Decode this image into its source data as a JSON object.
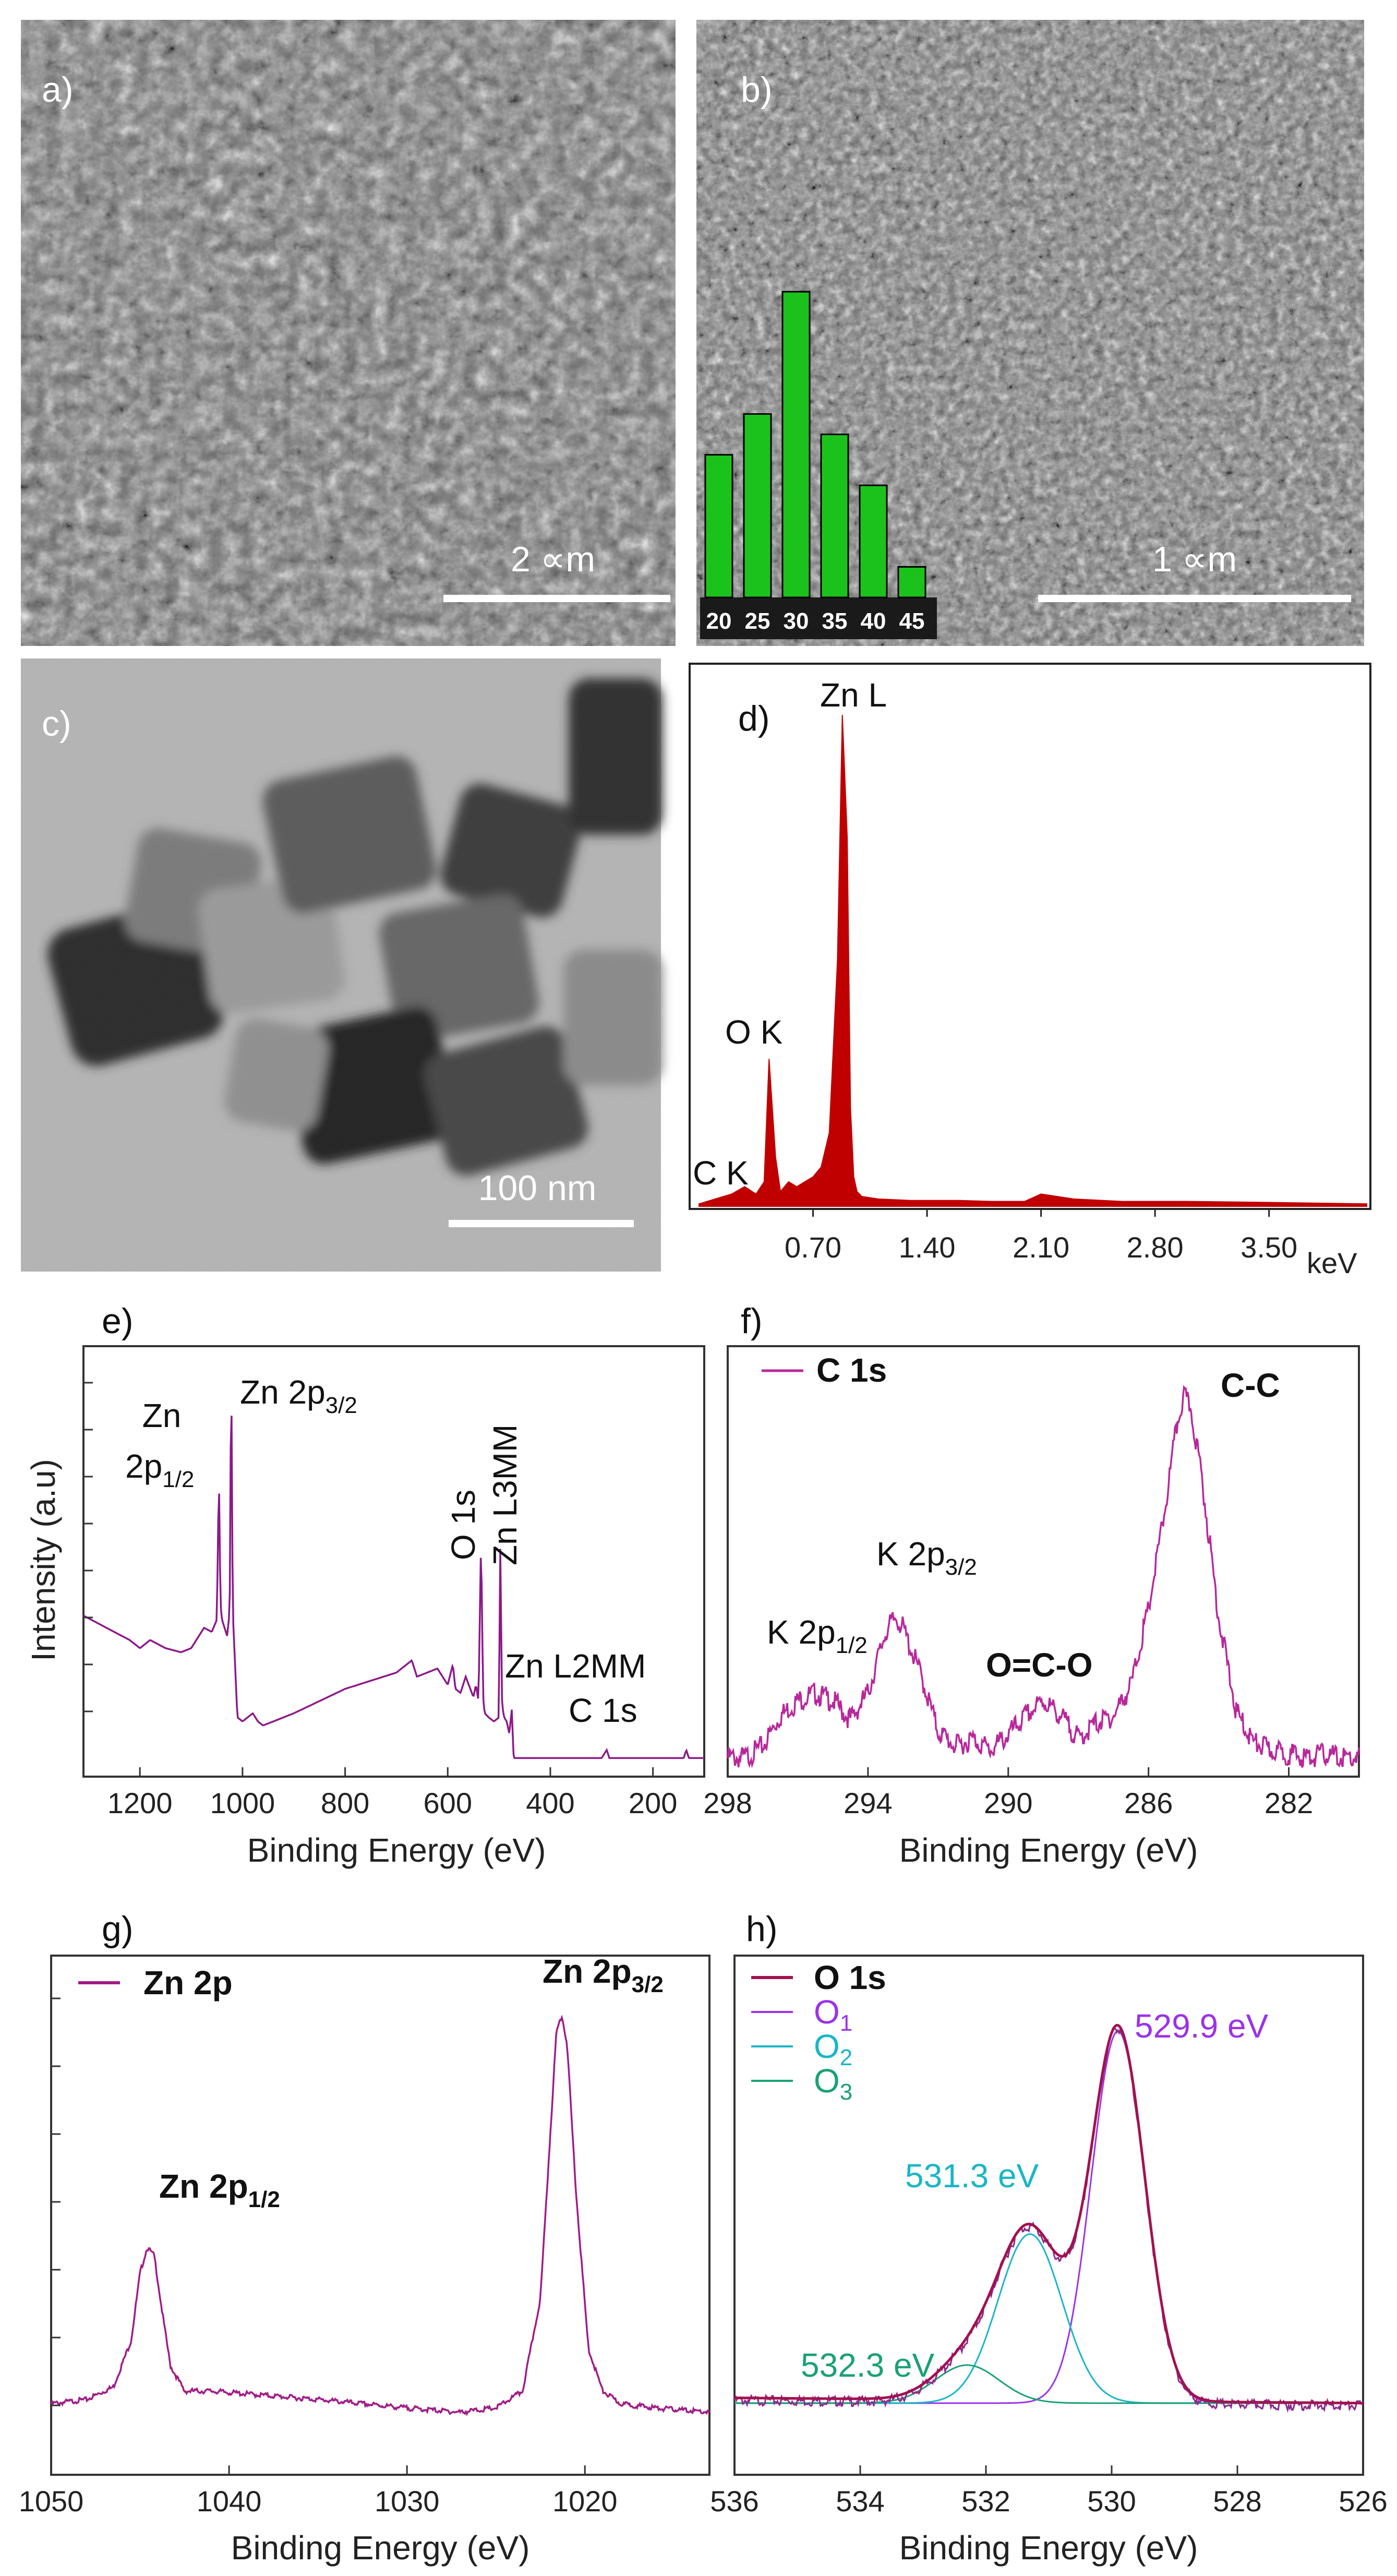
{
  "panels": {
    "a": {
      "label": "a)",
      "scale_bar": "2 ∝m"
    },
    "b": {
      "label": "b)",
      "scale_bar": "1 ∝m"
    },
    "c": {
      "label": "c)",
      "scale_bar": "100 nm"
    },
    "d": {
      "label": "d)"
    },
    "e": {
      "label": "e)"
    },
    "f": {
      "label": "f)"
    },
    "g": {
      "label": "g)"
    },
    "h": {
      "label": "h)"
    }
  },
  "chart_data": [
    {
      "panel": "b",
      "type": "bar",
      "categories": [
        "20",
        "25",
        "30",
        "35",
        "40",
        "45"
      ],
      "values": [
        7,
        9,
        15,
        8,
        5.5,
        1.5
      ],
      "ylim": [
        0,
        16
      ],
      "color": "#1cc21c"
    },
    {
      "panel": "d",
      "type": "area",
      "xlabel": "keV",
      "xticks": [
        "0.70",
        "1.40",
        "2.10",
        "2.80",
        "3.50"
      ],
      "xlim": [
        0,
        4.1
      ],
      "ylim": [
        0,
        100
      ],
      "color": "#c00000",
      "x": [
        0,
        0.1,
        0.2,
        0.28,
        0.35,
        0.4,
        0.43,
        0.47,
        0.5,
        0.55,
        0.6,
        0.7,
        0.75,
        0.8,
        0.85,
        0.88,
        0.91,
        0.93,
        0.95,
        0.97,
        1.0,
        1.1,
        1.3,
        1.6,
        1.8,
        2.0,
        2.1,
        2.3,
        2.6,
        3.0,
        3.5,
        4.1
      ],
      "y": [
        0.5,
        1.5,
        2.5,
        4,
        2.5,
        5,
        30,
        10,
        3,
        5,
        4,
        6,
        8,
        15,
        50,
        100,
        75,
        20,
        6,
        3,
        2,
        1.5,
        1.2,
        1.2,
        1,
        1,
        2.5,
        1.5,
        1,
        1,
        0.8,
        0.5
      ],
      "annotations": [
        "Zn L",
        "O K",
        "C K"
      ]
    },
    {
      "panel": "e",
      "type": "line",
      "xlabel": "Binding Energy (eV)",
      "ylabel": "Intensity (a.u)",
      "xticks": [
        "1200",
        "1000",
        "800",
        "600",
        "400",
        "200"
      ],
      "xlim": [
        1310,
        100
      ],
      "ylim": [
        0,
        100
      ],
      "color": "#8b1a89",
      "x": [
        1310,
        1280,
        1250,
        1220,
        1200,
        1180,
        1150,
        1120,
        1100,
        1090,
        1075,
        1060,
        1050,
        1046,
        1043,
        1040,
        1030,
        1025,
        1022,
        1019,
        1010,
        1000,
        980,
        970,
        960,
        900,
        850,
        800,
        750,
        700,
        670,
        660,
        640,
        620,
        600,
        590,
        585,
        575,
        565,
        550,
        545,
        540,
        535,
        531,
        528,
        520,
        510,
        500,
        498,
        494,
        490,
        485,
        480,
        475,
        472,
        470,
        460,
        400,
        300,
        290,
        285,
        280,
        200,
        140,
        135,
        130,
        100
      ],
      "y": [
        37,
        35,
        33,
        31,
        29,
        31,
        29,
        28,
        29,
        31,
        34,
        33,
        36,
        72,
        40,
        36,
        32,
        38,
        100,
        38,
        12,
        11,
        13,
        11,
        10,
        13,
        16,
        19,
        21,
        23,
        26,
        22,
        23,
        24,
        20,
        25,
        19,
        18,
        22,
        17,
        20,
        16,
        56,
        17,
        13,
        12,
        11,
        12,
        58,
        15,
        12,
        11,
        8,
        14,
        3,
        2,
        2,
        2,
        2,
        4,
        2,
        2,
        2,
        2,
        4,
        2,
        2
      ],
      "annotations": [
        "Zn 2p1/2",
        "Zn 2p3/2",
        "O 1s",
        "Zn L3MM",
        "Zn L2MM",
        "C 1s"
      ]
    },
    {
      "panel": "f",
      "type": "line",
      "xlabel": "Binding Energy (eV)",
      "xticks": [
        "298",
        "294",
        "290",
        "286",
        "282"
      ],
      "xlim": [
        298,
        280
      ],
      "ylim": [
        0,
        100
      ],
      "color": "#b8289a",
      "series": [
        {
          "name": "C 1s"
        }
      ],
      "x": [
        297.5,
        297,
        296.5,
        296,
        295.5,
        295,
        294.5,
        294,
        293.5,
        293.2,
        293,
        292.5,
        292,
        291.5,
        291,
        290.5,
        290,
        289.5,
        289,
        288.5,
        288,
        287.5,
        287,
        286.5,
        286,
        285.5,
        285.2,
        285,
        284.8,
        284.5,
        284,
        283.5,
        283,
        282.5,
        282,
        281.5,
        281,
        280.5,
        280
      ],
      "y": [
        3,
        6,
        14,
        18,
        20,
        18,
        13,
        20,
        36,
        40,
        37,
        25,
        10,
        6,
        8,
        5,
        9,
        14,
        18,
        14,
        8,
        12,
        14,
        22,
        42,
        70,
        90,
        98,
        95,
        78,
        40,
        15,
        7,
        5,
        4,
        3,
        4,
        3,
        3
      ],
      "annotations": [
        "C-C",
        "K 2p3/2",
        "K 2p1/2",
        "O=C-O"
      ]
    },
    {
      "panel": "g",
      "type": "line",
      "xlabel": "Binding Energy (eV)",
      "xticks": [
        "1050",
        "1040",
        "1030",
        "1020"
      ],
      "xlim": [
        1050,
        1013
      ],
      "ylim": [
        0,
        100
      ],
      "color": "#a11c85",
      "series": [
        {
          "name": "Zn 2p"
        }
      ],
      "x": [
        1050,
        1048,
        1046.5,
        1045.5,
        1045,
        1044.6,
        1044.2,
        1043.8,
        1043.3,
        1042.5,
        1041,
        1038,
        1035,
        1030,
        1027,
        1025,
        1023.5,
        1022.5,
        1022,
        1021.6,
        1021.3,
        1021,
        1020.5,
        1019.8,
        1019,
        1018,
        1016,
        1013
      ],
      "y": [
        5,
        6,
        9,
        20,
        36,
        42,
        40,
        28,
        14,
        8,
        8,
        7,
        6,
        4,
        3,
        4,
        8,
        30,
        65,
        93,
        97,
        90,
        55,
        18,
        8,
        5,
        4,
        3
      ],
      "annotations": [
        "Zn 2p3/2",
        "Zn 2p1/2"
      ]
    },
    {
      "panel": "h",
      "type": "line",
      "xlabel": "Binding Energy (eV)",
      "xticks": [
        "536",
        "534",
        "532",
        "530",
        "528",
        "526"
      ],
      "xlim": [
        536,
        526
      ],
      "ylim": [
        0,
        100
      ],
      "series": [
        {
          "name": "O 1s",
          "color": "#a2124e"
        },
        {
          "name": "O1",
          "color": "#9b33e8",
          "center": 529.9,
          "height": 88,
          "fwhm": 1.0
        },
        {
          "name": "O2",
          "color": "#19b6c7",
          "center": 531.3,
          "height": 40,
          "fwhm": 1.2
        },
        {
          "name": "O3",
          "color": "#1aa176",
          "center": 532.3,
          "height": 9,
          "fwhm": 1.2
        }
      ],
      "baseline": 3,
      "annotations": [
        "529.9 eV",
        "531.3 eV",
        "532.3 eV"
      ]
    }
  ]
}
